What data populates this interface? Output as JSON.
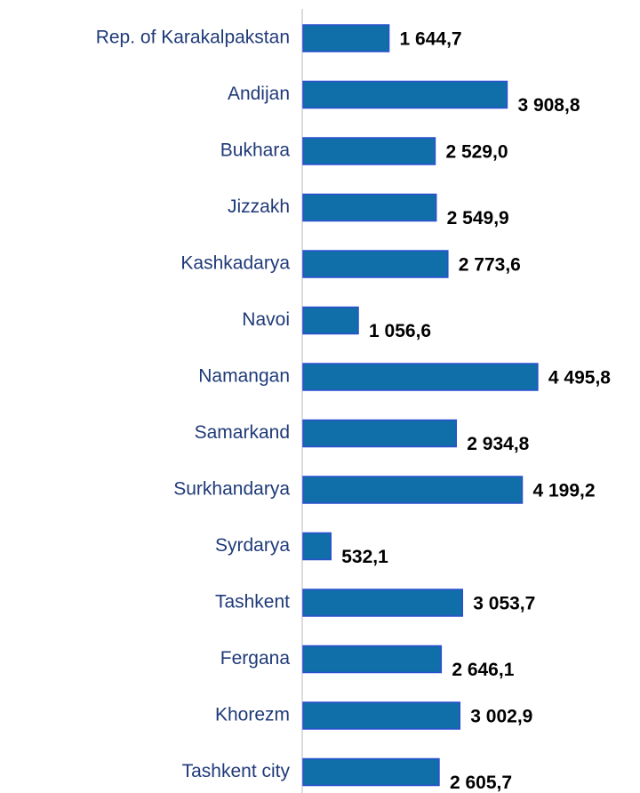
{
  "chart_data": {
    "type": "bar",
    "orientation": "horizontal",
    "categories": [
      "Rep. of Karakalpakstan",
      "Andijan",
      "Bukhara",
      "Jizzakh",
      "Kashkadarya",
      "Navoi",
      "Namangan",
      "Samarkand",
      "Surkhandarya",
      "Syrdarya",
      "Tashkent",
      "Fergana",
      "Khorezm",
      "Tashkent city"
    ],
    "values": [
      1644.7,
      3908.8,
      2529.0,
      2549.9,
      2773.6,
      1056.6,
      4495.8,
      2934.8,
      4199.2,
      532.1,
      3053.7,
      2646.1,
      3002.9,
      2605.7
    ],
    "value_labels": [
      "1 644,7",
      "3 908,8",
      "2 529,0",
      "2 549,9",
      "2 773,6",
      "1 056,6",
      "4 495,8",
      "2 934,8",
      "4 199,2",
      "532,1",
      "3 053,7",
      "2 646,1",
      "3 002,9",
      "2 605,7"
    ],
    "color": "#106fa8"
  }
}
